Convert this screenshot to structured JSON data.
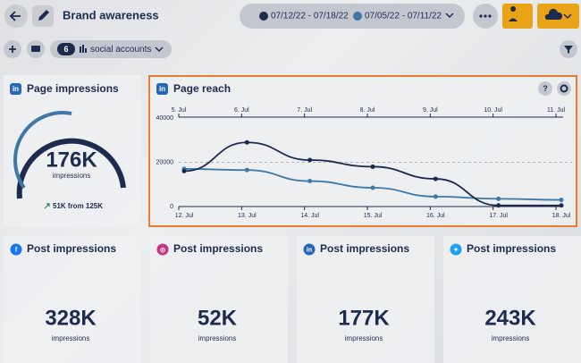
{
  "header": {
    "title": "Brand awareness",
    "date_range_current": "07/12/22 - 07/18/22",
    "date_range_previous": "07/05/22 - 07/11/22"
  },
  "filters": {
    "count": "6",
    "label": "social accounts"
  },
  "page_impressions": {
    "title": "Page impressions",
    "value": "176K",
    "unit": "impressions",
    "change": "51K from 125K"
  },
  "chart_data": {
    "type": "line",
    "title": "Page reach",
    "categories": [
      "12. Jul",
      "13. Jul",
      "14. Jul",
      "15. Jul",
      "16. Jul",
      "17. Jul",
      "18. Jul"
    ],
    "categories_top": [
      "5. Jul",
      "6. Jul",
      "7. Jul",
      "8. Jul",
      "9. Jul",
      "10. Jul",
      "11. Jul"
    ],
    "series": [
      {
        "color": "#1c2a4e",
        "values": [
          16000,
          29000,
          21000,
          18000,
          12500,
          500,
          500
        ]
      },
      {
        "color": "#3f78a6",
        "values": [
          17000,
          16500,
          11500,
          8500,
          4500,
          3500,
          3000
        ]
      }
    ],
    "ylim": [
      0,
      40000
    ],
    "yticks": [
      0,
      20000,
      40000
    ],
    "grid": true
  },
  "post_cards": [
    {
      "title": "Post impressions",
      "value": "328K",
      "unit": "impressions"
    },
    {
      "title": "Post impressions",
      "value": "52K",
      "unit": "impressions"
    },
    {
      "title": "Post impressions",
      "value": "177K",
      "unit": "impressions"
    },
    {
      "title": "Post impressions",
      "value": "243K",
      "unit": "impressions"
    }
  ]
}
